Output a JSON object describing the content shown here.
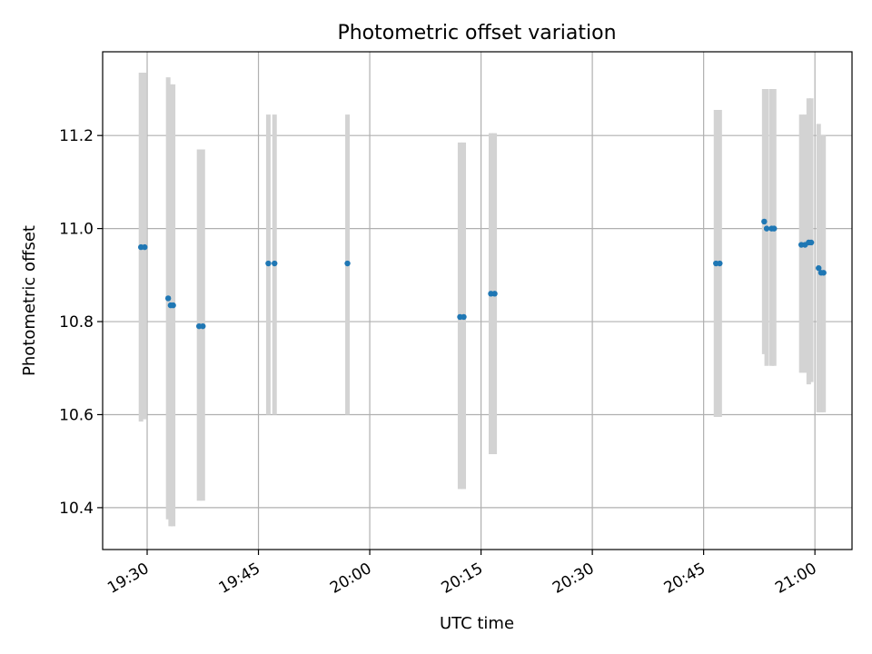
{
  "chart_data": {
    "type": "scatter",
    "title": "Photometric offset variation",
    "xlabel": "UTC time",
    "ylabel": "Photometric offset",
    "x_ticks": [
      "19:30",
      "19:45",
      "20:00",
      "20:15",
      "20:30",
      "20:45",
      "21:00"
    ],
    "y_ticks": [
      "10.4",
      "10.6",
      "10.8",
      "11.0",
      "11.2"
    ],
    "xlim": [
      "19:24",
      "21:05"
    ],
    "ylim": [
      10.31,
      11.38
    ],
    "grid": true,
    "colors": {
      "points": "#1f77b4",
      "errorbars": "#d3d3d3",
      "grid": "#b0b0b0"
    },
    "points": [
      {
        "x": "19:29:10",
        "y": 10.96,
        "yerr_low": 10.585,
        "yerr_high": 11.335
      },
      {
        "x": "19:29:40",
        "y": 10.96,
        "yerr_low": 10.59,
        "yerr_high": 11.335
      },
      {
        "x": "19:32:50",
        "y": 10.85,
        "yerr_low": 10.375,
        "yerr_high": 11.325
      },
      {
        "x": "19:33:10",
        "y": 10.835,
        "yerr_low": 10.36,
        "yerr_high": 11.31
      },
      {
        "x": "19:33:30",
        "y": 10.835,
        "yerr_low": 10.36,
        "yerr_high": 11.31
      },
      {
        "x": "19:37:00",
        "y": 10.79,
        "yerr_low": 10.415,
        "yerr_high": 11.17
      },
      {
        "x": "19:37:30",
        "y": 10.79,
        "yerr_low": 10.415,
        "yerr_high": 11.17
      },
      {
        "x": "19:46:20",
        "y": 10.925,
        "yerr_low": 10.6,
        "yerr_high": 11.245
      },
      {
        "x": "19:47:10",
        "y": 10.925,
        "yerr_low": 10.6,
        "yerr_high": 11.245
      },
      {
        "x": "19:57:00",
        "y": 10.925,
        "yerr_low": 10.6,
        "yerr_high": 11.245
      },
      {
        "x": "20:12:10",
        "y": 10.81,
        "yerr_low": 10.44,
        "yerr_high": 11.185
      },
      {
        "x": "20:12:40",
        "y": 10.81,
        "yerr_low": 10.44,
        "yerr_high": 11.185
      },
      {
        "x": "20:16:20",
        "y": 10.86,
        "yerr_low": 10.515,
        "yerr_high": 11.205
      },
      {
        "x": "20:16:50",
        "y": 10.86,
        "yerr_low": 10.515,
        "yerr_high": 11.205
      },
      {
        "x": "20:46:40",
        "y": 10.925,
        "yerr_low": 10.595,
        "yerr_high": 11.255
      },
      {
        "x": "20:47:10",
        "y": 10.925,
        "yerr_low": 10.595,
        "yerr_high": 11.255
      },
      {
        "x": "20:53:10",
        "y": 11.015,
        "yerr_low": 10.73,
        "yerr_high": 11.3
      },
      {
        "x": "20:53:30",
        "y": 11.0,
        "yerr_low": 10.705,
        "yerr_high": 11.3
      },
      {
        "x": "20:54:10",
        "y": 11.0,
        "yerr_low": 10.705,
        "yerr_high": 11.3
      },
      {
        "x": "20:54:30",
        "y": 11.0,
        "yerr_low": 10.705,
        "yerr_high": 11.3
      },
      {
        "x": "20:58:10",
        "y": 10.965,
        "yerr_low": 10.69,
        "yerr_high": 11.245
      },
      {
        "x": "20:58:40",
        "y": 10.965,
        "yerr_low": 10.69,
        "yerr_high": 11.245
      },
      {
        "x": "20:59:10",
        "y": 10.97,
        "yerr_low": 10.665,
        "yerr_high": 11.28
      },
      {
        "x": "20:59:30",
        "y": 10.97,
        "yerr_low": 10.67,
        "yerr_high": 11.28
      },
      {
        "x": "21:00:30",
        "y": 10.915,
        "yerr_low": 10.605,
        "yerr_high": 11.225
      },
      {
        "x": "21:00:50",
        "y": 10.905,
        "yerr_low": 10.605,
        "yerr_high": 11.2
      },
      {
        "x": "21:01:10",
        "y": 10.905,
        "yerr_low": 10.605,
        "yerr_high": 11.2
      }
    ]
  }
}
